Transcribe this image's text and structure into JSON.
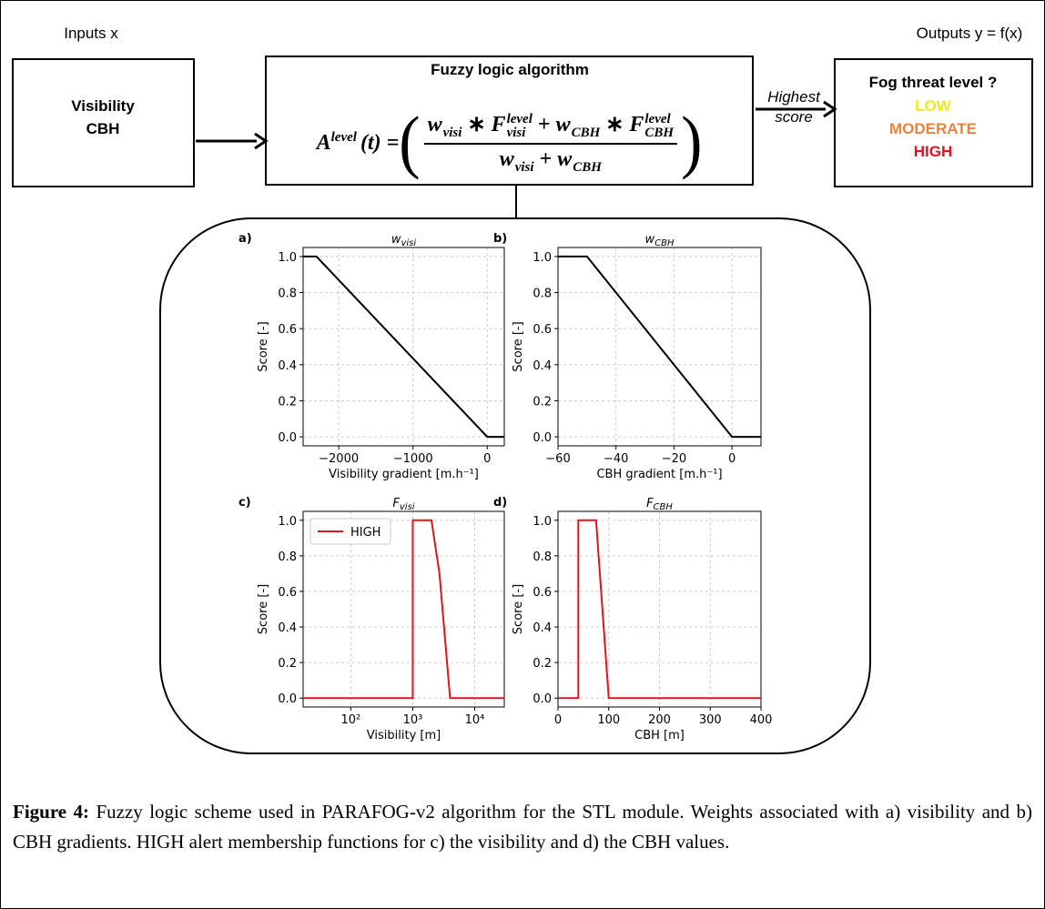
{
  "diagram": {
    "inputs_label": "Inputs x",
    "inputs": [
      "Visibility",
      "CBH"
    ],
    "algorithm_title": "Fuzzy logic algorithm",
    "formula": {
      "lhs": {
        "base": "A",
        "sup": "level",
        "rest": "(t) ="
      },
      "numerator": [
        {
          "base": "w",
          "sub": "visi"
        },
        "∗",
        {
          "base": "F",
          "sup": "level",
          "sub": "visi"
        },
        "+",
        {
          "base": "w",
          "sub": "CBH"
        },
        "∗",
        {
          "base": "F",
          "sup": "level",
          "sub": "CBH"
        }
      ],
      "denominator": [
        {
          "base": "w",
          "sub": "visi"
        },
        "+",
        {
          "base": "w",
          "sub": "CBH"
        }
      ]
    },
    "arrow_label": [
      "Highest",
      "score"
    ],
    "outputs_label": "Outputs y = f(x)",
    "outputs_title": "Fog threat level ?",
    "levels": [
      {
        "text": "LOW",
        "color": "#f2e81a"
      },
      {
        "text": "MODERATE",
        "color": "#e8823c"
      },
      {
        "text": "HIGH",
        "color": "#e0141e"
      }
    ]
  },
  "chart_data": [
    {
      "type": "line",
      "panel": "a)",
      "title": "w",
      "title_sub": "visi",
      "xlabel": "Visibility gradient [m.h⁻¹]",
      "ylabel": "Score [-]",
      "x": [
        -2480,
        -2300,
        0,
        230
      ],
      "series": [
        {
          "color": "#000000",
          "values": [
            1,
            1,
            0,
            0
          ]
        }
      ],
      "xlim": [
        -2480,
        230
      ],
      "xticks": [
        {
          "value": -2000,
          "label": "−2000"
        },
        {
          "value": -1000,
          "label": "−1000"
        },
        0
      ],
      "ylim": [
        -0.05,
        1.05
      ],
      "yticks": [
        {
          "value": 0,
          "label": "0.0"
        },
        0.2,
        0.4,
        0.6,
        0.8,
        {
          "value": 1,
          "label": "1.0"
        }
      ],
      "grid": true
    },
    {
      "type": "line",
      "panel": "b)",
      "title": "w",
      "title_sub": "CBH",
      "xlabel": "CBH gradient [m.h⁻¹]",
      "ylabel": "Score [-]",
      "x": [
        -60,
        -50,
        0,
        10
      ],
      "series": [
        {
          "color": "#000000",
          "values": [
            1,
            1,
            0,
            0
          ]
        }
      ],
      "xlim": [
        -60,
        10
      ],
      "xticks": [
        {
          "value": -60,
          "label": "−60"
        },
        {
          "value": -40,
          "label": "−40"
        },
        {
          "value": -20,
          "label": "−20"
        },
        0
      ],
      "ylim": [
        -0.05,
        1.05
      ],
      "yticks": [
        {
          "value": 0,
          "label": "0.0"
        },
        0.2,
        0.4,
        0.6,
        0.8,
        {
          "value": 1,
          "label": "1.0"
        }
      ],
      "grid": true
    },
    {
      "type": "line",
      "panel": "c)",
      "title": "F",
      "title_sub": "visi",
      "xlabel": "Visibility [m]",
      "ylabel": "Score [-]",
      "log_x": true,
      "x": [
        17,
        1000,
        1000,
        2000,
        2700,
        4000,
        30000
      ],
      "series": [
        {
          "name": "HIGH",
          "color": "#e0141e",
          "values": [
            0,
            0,
            1,
            1,
            0.7,
            0,
            0
          ]
        }
      ],
      "xlim": [
        17,
        30000
      ],
      "xticks": [
        {
          "value": 100,
          "label": "10²"
        },
        {
          "value": 1000,
          "label": "10³"
        },
        {
          "value": 10000,
          "label": "10⁴"
        }
      ],
      "ylim": [
        -0.05,
        1.05
      ],
      "yticks": [
        {
          "value": 0,
          "label": "0.0"
        },
        0.2,
        0.4,
        0.6,
        0.8,
        {
          "value": 1,
          "label": "1.0"
        }
      ],
      "grid": true,
      "legend": "upper left"
    },
    {
      "type": "line",
      "panel": "d)",
      "title": "F",
      "title_sub": "CBH",
      "xlabel": "CBH [m]",
      "ylabel": "Score [-]",
      "x": [
        0,
        40,
        40,
        75,
        100,
        400
      ],
      "series": [
        {
          "color": "#e0141e",
          "values": [
            0,
            0,
            1,
            1,
            0,
            0
          ]
        }
      ],
      "xlim": [
        0,
        400
      ],
      "xticks": [
        0,
        100,
        200,
        300,
        400
      ],
      "ylim": [
        -0.05,
        1.05
      ],
      "yticks": [
        {
          "value": 0,
          "label": "0.0"
        },
        0.2,
        0.4,
        0.6,
        0.8,
        {
          "value": 1,
          "label": "1.0"
        }
      ],
      "grid": true
    }
  ],
  "caption": {
    "label": "Figure 4:",
    "text": " Fuzzy logic scheme used in PARAFOG-v2 algorithm for the STL module. Weights associated with a) visibility and b) CBH gradients. HIGH alert membership functions for c) the visibility and d) the CBH values."
  }
}
